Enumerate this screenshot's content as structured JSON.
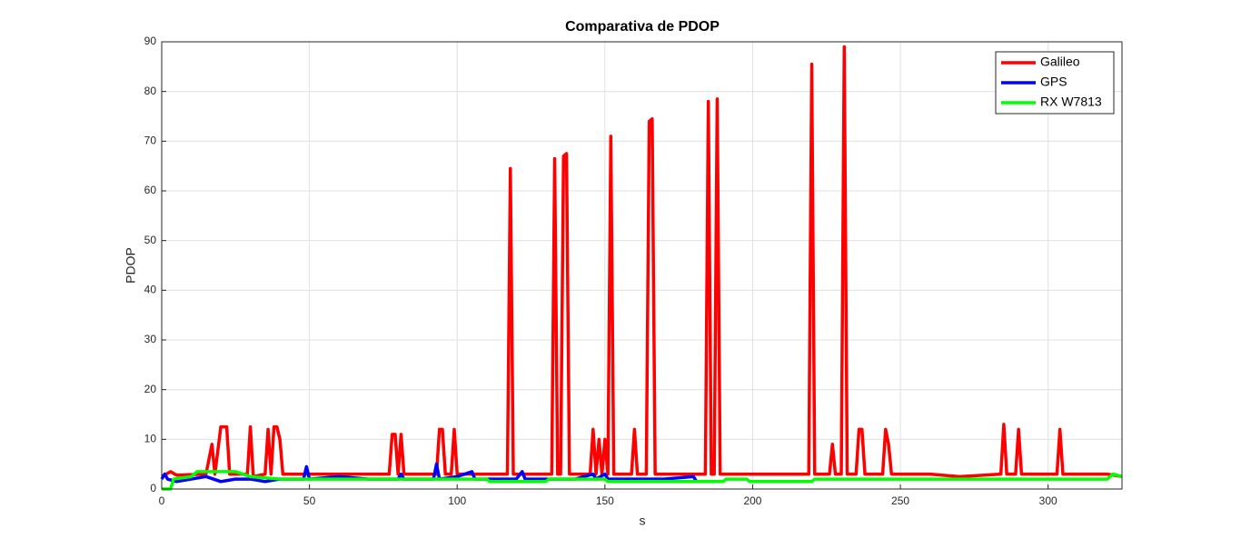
{
  "chart_data": {
    "type": "line",
    "title": "Comparativa de PDOP",
    "x_label": "s",
    "y_label": "PDOP",
    "xlim": [
      0,
      325
    ],
    "ylim": [
      0,
      90
    ],
    "xticks": [
      0,
      50,
      100,
      150,
      200,
      250,
      300
    ],
    "yticks": [
      0,
      10,
      20,
      30,
      40,
      50,
      60,
      70,
      80,
      90
    ],
    "grid": true,
    "legend_position": "upper right",
    "series": [
      {
        "name": "Galileo",
        "color": "#ff0000",
        "x": [
          0,
          3,
          5,
          15,
          17,
          18,
          20,
          22,
          23,
          29,
          30,
          31,
          35,
          36,
          37,
          38,
          39,
          40,
          41,
          50,
          60,
          70,
          77,
          78,
          79,
          80,
          81,
          82,
          93,
          94,
          95,
          96,
          98,
          99,
          100,
          110,
          117,
          118,
          119,
          132,
          133,
          134,
          135,
          136,
          137,
          138,
          145,
          146,
          147,
          148,
          149,
          150,
          151,
          152,
          153,
          159,
          160,
          161,
          164,
          165,
          166,
          167,
          175,
          184,
          185,
          186,
          187,
          188,
          189,
          200,
          210,
          219,
          220,
          221,
          226,
          227,
          228,
          230,
          231,
          232,
          235,
          236,
          237,
          238,
          244,
          245,
          246,
          247,
          260,
          270,
          284,
          285,
          286,
          289,
          290,
          291,
          303,
          304,
          305,
          315,
          320,
          325
        ],
        "values": [
          2.5,
          3.5,
          2.8,
          3,
          9,
          3,
          12.5,
          12.5,
          3,
          3,
          12.5,
          2.5,
          3,
          12,
          3,
          12.5,
          12.5,
          10,
          3,
          3,
          3,
          3,
          3,
          11,
          11,
          3,
          11,
          3,
          3,
          12,
          12,
          3,
          3,
          12,
          3,
          3,
          3,
          64.5,
          3,
          3,
          66.5,
          3,
          3,
          67,
          67.5,
          3,
          3,
          12,
          3,
          10,
          3,
          10,
          3,
          71,
          3,
          3,
          12,
          3,
          3,
          74,
          74.5,
          3,
          3,
          3,
          78,
          3,
          3,
          78.5,
          3,
          3,
          3,
          3,
          85.5,
          3,
          3,
          9,
          3,
          3,
          89,
          3,
          3,
          12,
          12,
          3,
          3,
          12,
          9,
          3,
          3,
          2.5,
          3,
          13,
          3,
          3,
          12,
          3,
          3,
          12,
          3,
          3,
          3,
          2.5
        ]
      },
      {
        "name": "GPS",
        "color": "#0000ff",
        "x": [
          0,
          1,
          2,
          5,
          10,
          15,
          20,
          25,
          30,
          35,
          40,
          48,
          49,
          50,
          60,
          70,
          80,
          81,
          82,
          92,
          93,
          94,
          100,
          105,
          106,
          120,
          122,
          123,
          140,
          146,
          147,
          150,
          151,
          160,
          170,
          180,
          181,
          190
        ],
        "values": [
          2,
          3,
          2,
          1.5,
          2,
          2.5,
          1.5,
          2,
          2,
          1.5,
          2,
          2,
          4.5,
          2,
          2.5,
          2,
          2,
          3,
          2,
          2,
          5,
          2,
          2.5,
          3.5,
          2,
          2,
          3.5,
          2,
          2,
          3,
          2,
          3,
          2,
          2,
          2,
          2.5,
          1.5,
          1.5
        ]
      },
      {
        "name": "RX W7813",
        "color": "#00ff00",
        "x": [
          0,
          3,
          4,
          10,
          12,
          25,
          30,
          40,
          110,
          111,
          130,
          131,
          150,
          151,
          190,
          191,
          198,
          199,
          220,
          221,
          320,
          322,
          325
        ],
        "values": [
          0,
          0,
          2,
          2.5,
          3.5,
          3.5,
          2.5,
          2,
          2,
          1.5,
          1.5,
          2,
          2,
          1.5,
          1.5,
          2,
          2,
          1.5,
          1.5,
          2,
          2,
          3,
          2.5
        ]
      }
    ]
  }
}
